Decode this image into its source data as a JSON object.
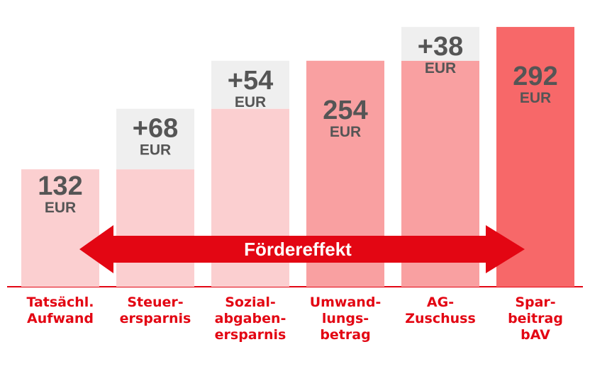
{
  "chart_data": {
    "type": "bar",
    "subtype": "waterfall",
    "title": "",
    "categories": [
      "Tatsächl.\nAufwand",
      "Steuer-\nersparnis",
      "Sozial-\nabgaben-\nersparnis",
      "Umwand-\nlungs-\nbetrag",
      "AG-\nZuschuss",
      "Spar-\nbeitrag\nbAV"
    ],
    "values": [
      132,
      68,
      54,
      254,
      38,
      292
    ],
    "value_labels": [
      "132",
      "+68",
      "+54",
      "254",
      "+38",
      "292"
    ],
    "bases": [
      0,
      132,
      200,
      0,
      254,
      0
    ],
    "unit": "EUR",
    "bar_kinds": [
      "total",
      "increment",
      "increment",
      "total",
      "increment",
      "total"
    ],
    "ylim": [
      0,
      300
    ],
    "grid": false,
    "legend": "none",
    "annotation": "Fördereffekt",
    "colors": {
      "stage1": "#fbcfd0",
      "stage2": "#f9a0a1",
      "stage3": "#f76869",
      "increment_box": "#efefef",
      "accent_red": "#e30613",
      "value_text": "#555555"
    }
  }
}
